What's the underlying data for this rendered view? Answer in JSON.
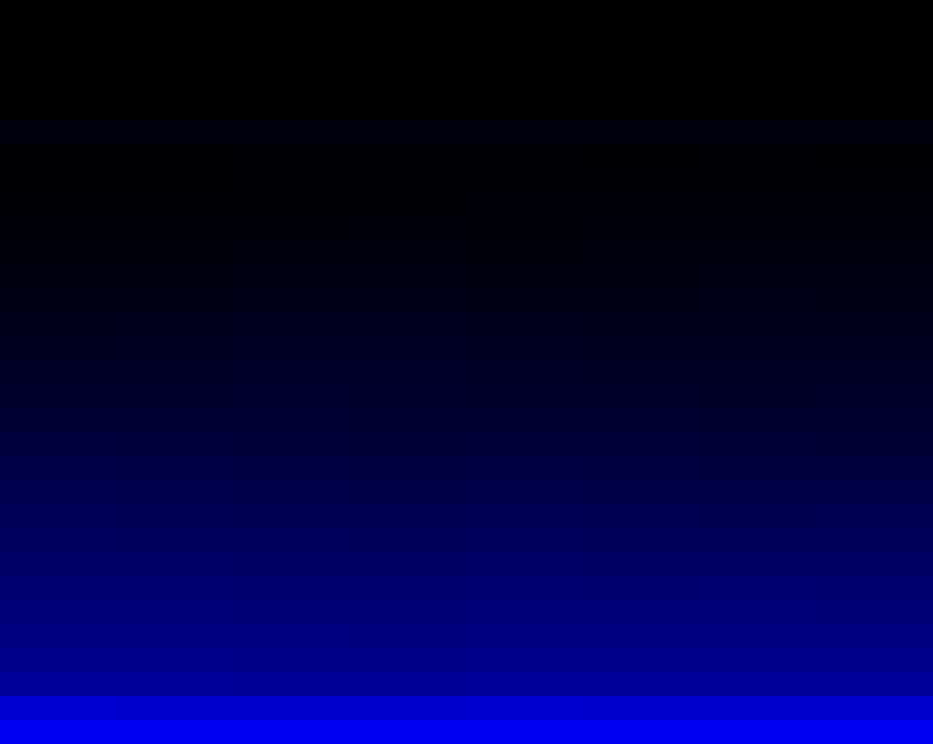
{
  "chart_data": {
    "type": "heatmap",
    "color": "#0000ff",
    "tick_labels": false,
    "cells": [
      [
        0,
        0,
        0,
        0,
        0,
        0,
        0,
        0
      ],
      [
        0,
        0,
        0,
        0,
        0,
        0,
        0,
        0
      ],
      [
        0,
        0,
        0,
        0,
        0,
        0,
        0,
        0
      ],
      [
        0,
        0,
        0,
        0,
        0,
        0,
        0,
        0
      ],
      [
        0,
        0,
        0,
        0,
        0,
        0,
        0,
        0
      ],
      [
        0.05,
        0.05,
        0.05,
        0.05,
        0.05,
        0.05,
        0.05,
        0.05
      ],
      [
        0.01,
        0.01,
        0.02,
        0.02,
        0.02,
        0.01,
        0.02,
        0.01
      ],
      [
        0.01,
        0.01,
        0.02,
        0.02,
        0.02,
        0.02,
        0.02,
        0.02
      ],
      [
        0.02,
        0.02,
        0.02,
        0.02,
        0.03,
        0.03,
        0.03,
        0.03
      ],
      [
        0.03,
        0.03,
        0.03,
        0.04,
        0.03,
        0.04,
        0.04,
        0.04
      ],
      [
        0.04,
        0.04,
        0.05,
        0.05,
        0.04,
        0.05,
        0.05,
        0.05
      ],
      [
        0.06,
        0.06,
        0.07,
        0.07,
        0.06,
        0.06,
        0.07,
        0.07
      ],
      [
        0.08,
        0.08,
        0.09,
        0.09,
        0.08,
        0.08,
        0.09,
        0.08
      ],
      [
        0.1,
        0.11,
        0.12,
        0.12,
        0.11,
        0.1,
        0.1,
        0.1
      ],
      [
        0.12,
        0.13,
        0.14,
        0.14,
        0.13,
        0.12,
        0.12,
        0.12
      ],
      [
        0.15,
        0.15,
        0.16,
        0.16,
        0.15,
        0.14,
        0.14,
        0.14
      ],
      [
        0.17,
        0.17,
        0.18,
        0.17,
        0.16,
        0.16,
        0.15,
        0.16
      ],
      [
        0.2,
        0.2,
        0.2,
        0.19,
        0.19,
        0.19,
        0.18,
        0.18
      ],
      [
        0.24,
        0.23,
        0.22,
        0.21,
        0.22,
        0.22,
        0.21,
        0.2
      ],
      [
        0.28,
        0.27,
        0.26,
        0.25,
        0.26,
        0.25,
        0.24,
        0.24
      ],
      [
        0.31,
        0.3,
        0.29,
        0.28,
        0.29,
        0.28,
        0.28,
        0.28
      ],
      [
        0.34,
        0.33,
        0.32,
        0.32,
        0.33,
        0.32,
        0.31,
        0.32
      ],
      [
        0.37,
        0.36,
        0.36,
        0.35,
        0.36,
        0.35,
        0.35,
        0.35
      ],
      [
        0.4,
        0.4,
        0.39,
        0.39,
        0.4,
        0.39,
        0.39,
        0.39
      ],
      [
        0.44,
        0.44,
        0.43,
        0.43,
        0.44,
        0.43,
        0.44,
        0.43
      ],
      [
        0.47,
        0.47,
        0.46,
        0.46,
        0.47,
        0.47,
        0.47,
        0.46
      ],
      [
        0.5,
        0.5,
        0.5,
        0.49,
        0.5,
        0.5,
        0.5,
        0.5
      ],
      [
        0.54,
        0.54,
        0.53,
        0.53,
        0.54,
        0.54,
        0.54,
        0.54
      ],
      [
        0.6,
        0.6,
        0.59,
        0.59,
        0.6,
        0.6,
        0.6,
        0.6
      ],
      [
        0.82,
        0.8,
        0.8,
        0.8,
        0.81,
        0.8,
        0.8,
        0.8
      ],
      [
        0.95,
        0.95,
        0.95,
        0.95,
        0.95,
        0.95,
        0.95,
        0.95
      ]
    ]
  }
}
